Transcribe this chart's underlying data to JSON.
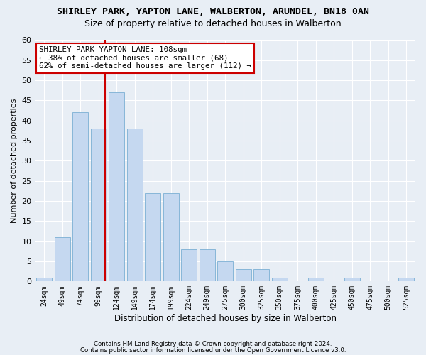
{
  "title": "SHIRLEY PARK, YAPTON LANE, WALBERTON, ARUNDEL, BN18 0AN",
  "subtitle": "Size of property relative to detached houses in Walberton",
  "xlabel": "Distribution of detached houses by size in Walberton",
  "ylabel": "Number of detached properties",
  "categories": [
    "24sqm",
    "49sqm",
    "74sqm",
    "99sqm",
    "124sqm",
    "149sqm",
    "174sqm",
    "199sqm",
    "224sqm",
    "249sqm",
    "275sqm",
    "300sqm",
    "325sqm",
    "350sqm",
    "375sqm",
    "400sqm",
    "425sqm",
    "450sqm",
    "475sqm",
    "500sqm",
    "525sqm"
  ],
  "values": [
    1,
    11,
    42,
    38,
    47,
    38,
    22,
    22,
    8,
    8,
    5,
    3,
    3,
    1,
    0,
    1,
    0,
    1,
    0,
    0,
    1
  ],
  "bar_color": "#c5d8f0",
  "bar_edge_color": "#7bafd4",
  "bar_width": 0.85,
  "ylim": [
    0,
    60
  ],
  "yticks": [
    0,
    5,
    10,
    15,
    20,
    25,
    30,
    35,
    40,
    45,
    50,
    55,
    60
  ],
  "red_line_x": 3.36,
  "red_line_color": "#cc0000",
  "annotation_text": "SHIRLEY PARK YAPTON LANE: 108sqm\n← 38% of detached houses are smaller (68)\n62% of semi-detached houses are larger (112) →",
  "annotation_box_color": "#ffffff",
  "annotation_box_edge": "#cc0000",
  "footer1": "Contains HM Land Registry data © Crown copyright and database right 2024.",
  "footer2": "Contains public sector information licensed under the Open Government Licence v3.0.",
  "bg_color": "#e8eef5",
  "grid_color": "#ffffff",
  "title_fontsize": 9.5,
  "subtitle_fontsize": 9,
  "annotation_fontsize": 7.8,
  "xlabel_fontsize": 8.5,
  "ylabel_fontsize": 8,
  "ytick_fontsize": 8,
  "xtick_fontsize": 7
}
